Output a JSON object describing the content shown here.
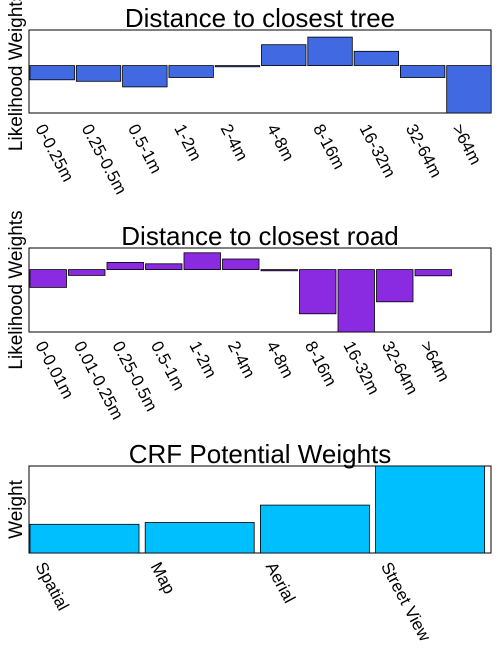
{
  "chart_data": [
    {
      "type": "bar",
      "title": "Distance to closest tree",
      "ylabel": "Likelihood Weights",
      "xlabel": "",
      "color": "#4169E1",
      "ylim": [
        -1.0,
        0.75
      ],
      "categories": [
        "0-0.25m",
        "0.25-0.5m",
        "0.5-1m",
        "1-2m",
        "2-4m",
        "4-8m",
        "8-16m",
        "16-32m",
        "32-64m",
        ">64m"
      ],
      "values": [
        -0.3,
        -0.33,
        -0.45,
        -0.25,
        -0.02,
        0.44,
        0.6,
        0.3,
        -0.25,
        -1.0
      ]
    },
    {
      "type": "bar",
      "title": "Distance to closest road",
      "ylabel": "Likelihood Weights",
      "xlabel": "",
      "color": "#8A2BE2",
      "ylim": [
        -1.3,
        0.45
      ],
      "categories": [
        "0-0.01m",
        "0.01-0.25m",
        "0.25-0.5m",
        "0.5-1m",
        "1-2m",
        "2-4m",
        "4-8m",
        "8-16m",
        "16-32m",
        "32-64m",
        ">64m"
      ],
      "values": [
        -0.37,
        -0.12,
        0.15,
        0.12,
        0.35,
        0.22,
        0.0,
        -0.92,
        -1.3,
        -0.67,
        -0.13
      ]
    },
    {
      "type": "bar",
      "title": "CRF Potential Weights",
      "ylabel": "Weight",
      "xlabel": "",
      "color": "#00BFFF",
      "ylim": [
        0,
        1.0
      ],
      "categories": [
        "Spatial",
        "Map",
        "Aerial",
        "Street View"
      ],
      "values": [
        0.33,
        0.35,
        0.55,
        1.0
      ]
    }
  ]
}
